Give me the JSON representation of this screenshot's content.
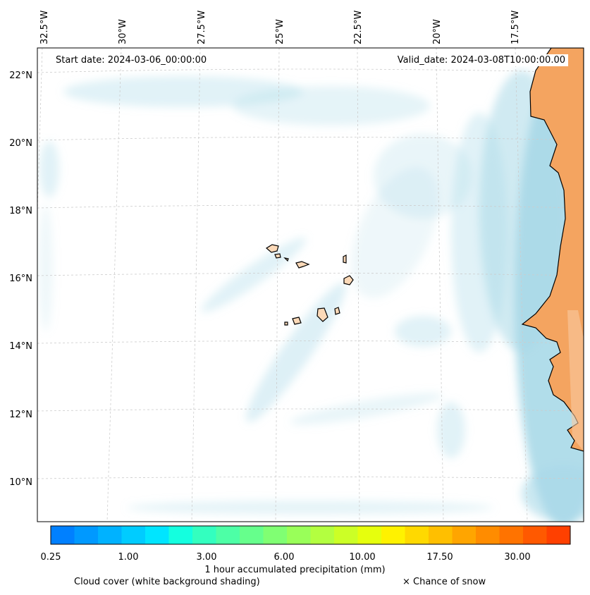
{
  "header": {
    "start_date": "Start date: 2024-03-06_00:00:00",
    "valid_date": "Valid_date: 2024-03-08T10:00:00.00"
  },
  "map": {
    "lon_labels": [
      "32.5°W",
      "30°W",
      "27.5°W",
      "25°W",
      "22.5°W",
      "20°W",
      "17.5°W"
    ],
    "lat_labels": [
      "22°N",
      "20°N",
      "18°N",
      "16°N",
      "14°N",
      "12°N",
      "10°N"
    ],
    "land_color": "#f4a460",
    "island_color": "#fbd9b8",
    "cloud_color": "#a9d9e8",
    "ocean_color": "#ffffff"
  },
  "colorbar": {
    "title": "1 hour accumulated precipitation (mm)",
    "tick_labels": [
      "0.25",
      "1.00",
      "3.00",
      "6.00",
      "10.00",
      "17.50",
      "30.00"
    ],
    "colors": [
      "#0080ff",
      "#0099ff",
      "#00b2ff",
      "#00ccff",
      "#00e5ff",
      "#14ffdf",
      "#33ffbf",
      "#4dffa6",
      "#66ff8c",
      "#80ff73",
      "#99ff59",
      "#b3ff40",
      "#ccff26",
      "#e6ff0d",
      "#fff200",
      "#ffd900",
      "#ffbf00",
      "#ffa500",
      "#ff8c00",
      "#ff7300",
      "#ff5900",
      "#ff4000"
    ]
  },
  "legend": {
    "cloud": "Cloud cover (white background shading)",
    "snow": "× Chance of snow"
  }
}
